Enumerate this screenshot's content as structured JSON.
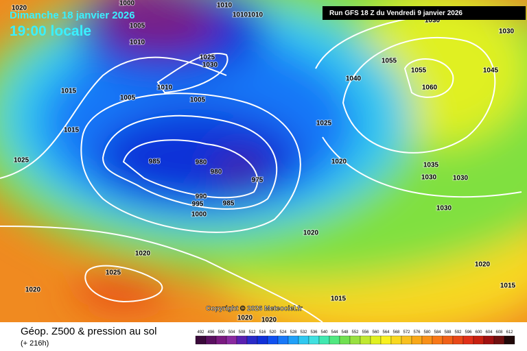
{
  "header": {
    "date": "Dimanche 18 janvier 2026",
    "time": "19:00 locale",
    "run": "Run GFS 18 Z du Vendredi 9 janvier 2026"
  },
  "isobar_labels": [
    1020,
    1000,
    1010,
    1010,
    1010,
    1005,
    1010,
    1030,
    1030,
    1025,
    1030,
    1010,
    1015,
    1005,
    1005,
    1055,
    1055,
    1060,
    1045,
    1040,
    1015,
    1025,
    985,
    980,
    980,
    975,
    1025,
    1020,
    1035,
    1030,
    1030,
    990,
    995,
    985,
    1000,
    1030,
    1020,
    1020,
    1025,
    1020,
    1020,
    1015,
    1015,
    1020,
    1020
  ],
  "copyright": "Copyright © 2026 Meteociel.fr",
  "legend": {
    "title": "Géop. Z500 & pression au sol",
    "subtitle": "(+ 216h)",
    "scale": [
      492,
      496,
      500,
      504,
      508,
      512,
      516,
      520,
      524,
      528,
      532,
      536,
      540,
      544,
      548,
      552,
      556,
      560,
      564,
      568,
      572,
      576,
      580,
      584,
      588,
      592,
      596,
      600,
      604,
      608,
      612
    ],
    "colors": [
      "#3a0a3a",
      "#5a1060",
      "#7a1a80",
      "#8a2aa0",
      "#5a20b0",
      "#2a2ac8",
      "#1030d8",
      "#1050f0",
      "#1878f8",
      "#20a0f8",
      "#30c8f0",
      "#40e0e0",
      "#40e8b0",
      "#50e880",
      "#70e050",
      "#98e040",
      "#c0e830",
      "#e0f020",
      "#f8f020",
      "#f8d820",
      "#f8c020",
      "#f8a818",
      "#f89018",
      "#f87818",
      "#f06018",
      "#e84818",
      "#e03018",
      "#c82010",
      "#a01010",
      "#701010",
      "#200808"
    ]
  }
}
